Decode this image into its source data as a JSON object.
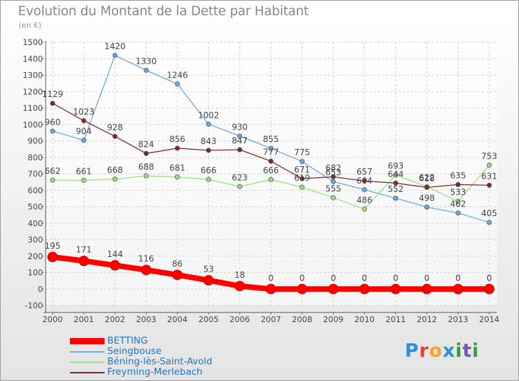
{
  "title": "Evolution du Montant de la Dette par Habitant",
  "unit": "(en €)",
  "logo_text": "Proxiti",
  "chart_data": {
    "type": "line",
    "x": [
      "2000",
      "2001",
      "2002",
      "2003",
      "2004",
      "2005",
      "2006",
      "2007",
      "2008",
      "2009",
      "2010",
      "2011",
      "2012",
      "2013",
      "2014"
    ],
    "ylim": [
      -100,
      1500
    ],
    "yticks": [
      -100,
      0,
      100,
      200,
      300,
      400,
      500,
      600,
      700,
      800,
      900,
      1000,
      1100,
      1200,
      1300,
      1400,
      1500
    ],
    "grid": true,
    "legend_position": "bottom-left",
    "series": [
      {
        "name": "BETTING",
        "color": "#ff0000",
        "labels": [
          "195",
          "171",
          "144",
          "116",
          "86",
          "53",
          "18",
          "0",
          "0",
          "0",
          "0",
          "0",
          "0",
          "0",
          "0"
        ],
        "values": [
          195,
          171,
          144,
          116,
          86,
          53,
          18,
          0,
          0,
          0,
          0,
          0,
          0,
          0,
          0
        ]
      },
      {
        "name": "Seingbouse",
        "color": "#6aa9e0",
        "labels": [
          "960",
          "904",
          "1420",
          "1330",
          "1246",
          "1002",
          "930",
          "855",
          "775",
          "653",
          "604",
          "552",
          "498",
          "462",
          "405"
        ],
        "values": [
          960,
          904,
          1420,
          1330,
          1246,
          1002,
          930,
          855,
          775,
          653,
          604,
          552,
          498,
          462,
          405
        ]
      },
      {
        "name": "Béning-lès-Saint-Avold",
        "color": "#98e07a",
        "labels": [
          "662",
          "661",
          "668",
          "688",
          "681",
          "666",
          "623",
          "666",
          "619",
          "555",
          "486",
          "693",
          "622",
          "533",
          "753"
        ],
        "values": [
          662,
          661,
          668,
          688,
          681,
          666,
          623,
          666,
          619,
          555,
          486,
          693,
          622,
          533,
          753
        ]
      },
      {
        "name": "Freyming-Merlebach",
        "color": "#7a2a2e",
        "labels": [
          "1129",
          "1023",
          "928",
          "824",
          "856",
          "843",
          "847",
          "777",
          "671",
          "682",
          "657",
          "644",
          "618",
          "635",
          "631"
        ],
        "values": [
          1129,
          1023,
          928,
          824,
          856,
          843,
          847,
          777,
          671,
          682,
          657,
          644,
          618,
          635,
          631
        ]
      }
    ]
  }
}
